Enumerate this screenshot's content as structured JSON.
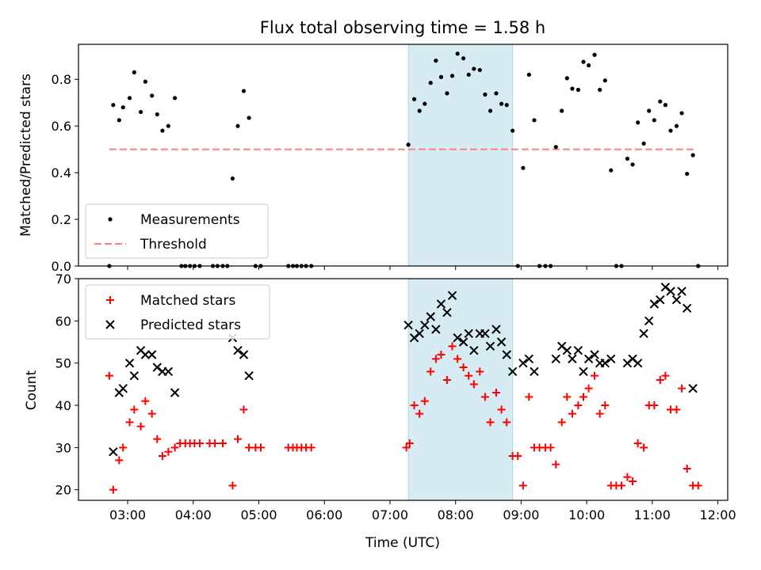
{
  "figure": {
    "title": "Flux total observing time = 1.58 h",
    "xlabel": "Time (UTC)"
  },
  "colors": {
    "measurement": "#000000",
    "threshold": "#ff7f7f",
    "matched": "#ff0000",
    "predicted": "#000000",
    "highlight": "#add8e6"
  },
  "chart_data": [
    {
      "type": "scatter",
      "panel": "top",
      "ylabel": "Matched/Predicted stars",
      "xlim": [
        2.25,
        12.15
      ],
      "ylim": [
        0,
        0.95
      ],
      "xticks": [
        3,
        4,
        5,
        6,
        7,
        8,
        9,
        10,
        11,
        12
      ],
      "xtick_labels": [],
      "yticks": [
        0.0,
        0.2,
        0.4,
        0.6,
        0.8
      ],
      "ytick_labels": [
        "0.0",
        "0.2",
        "0.4",
        "0.6",
        "0.8"
      ],
      "legend": {
        "position": "lower-left",
        "entries": [
          "Measurements",
          "Threshold"
        ]
      },
      "highlight_span": [
        7.28,
        8.87
      ],
      "threshold": {
        "name": "Threshold",
        "y": 0.5,
        "x": [
          2.72,
          11.67
        ]
      },
      "series": [
        {
          "name": "Measurements",
          "marker": "dot",
          "points": [
            [
              2.72,
              0.0
            ],
            [
              2.78,
              0.69
            ],
            [
              2.87,
              0.625
            ],
            [
              2.93,
              0.68
            ],
            [
              3.03,
              0.72
            ],
            [
              3.1,
              0.83
            ],
            [
              3.2,
              0.66
            ],
            [
              3.27,
              0.79
            ],
            [
              3.37,
              0.73
            ],
            [
              3.45,
              0.65
            ],
            [
              3.53,
              0.58
            ],
            [
              3.62,
              0.6
            ],
            [
              3.72,
              0.72
            ],
            [
              3.82,
              0.0
            ],
            [
              3.88,
              0.0
            ],
            [
              3.95,
              0.0
            ],
            [
              4.02,
              0.0
            ],
            [
              4.1,
              0.0
            ],
            [
              4.3,
              0.0
            ],
            [
              4.37,
              0.0
            ],
            [
              4.45,
              0.0
            ],
            [
              4.52,
              0.0
            ],
            [
              4.6,
              0.375
            ],
            [
              4.68,
              0.6
            ],
            [
              4.77,
              0.75
            ],
            [
              4.85,
              0.635
            ],
            [
              4.95,
              0.0
            ],
            [
              5.03,
              0.0
            ],
            [
              5.45,
              0.0
            ],
            [
              5.52,
              0.0
            ],
            [
              5.58,
              0.0
            ],
            [
              5.65,
              0.0
            ],
            [
              5.72,
              0.0
            ],
            [
              5.8,
              0.0
            ],
            [
              7.28,
              0.52
            ],
            [
              7.37,
              0.715
            ],
            [
              7.45,
              0.665
            ],
            [
              7.53,
              0.695
            ],
            [
              7.62,
              0.785
            ],
            [
              7.7,
              0.88
            ],
            [
              7.78,
              0.81
            ],
            [
              7.87,
              0.74
            ],
            [
              7.95,
              0.815
            ],
            [
              8.03,
              0.91
            ],
            [
              8.12,
              0.89
            ],
            [
              8.2,
              0.82
            ],
            [
              8.28,
              0.845
            ],
            [
              8.37,
              0.84
            ],
            [
              8.45,
              0.735
            ],
            [
              8.53,
              0.665
            ],
            [
              8.62,
              0.74
            ],
            [
              8.7,
              0.695
            ],
            [
              8.78,
              0.69
            ],
            [
              8.87,
              0.58
            ],
            [
              8.95,
              0.0
            ],
            [
              9.03,
              0.42
            ],
            [
              9.12,
              0.82
            ],
            [
              9.2,
              0.625
            ],
            [
              9.28,
              0.0
            ],
            [
              9.37,
              0.0
            ],
            [
              9.45,
              0.0
            ],
            [
              9.53,
              0.51
            ],
            [
              9.62,
              0.665
            ],
            [
              9.7,
              0.805
            ],
            [
              9.78,
              0.76
            ],
            [
              9.87,
              0.755
            ],
            [
              9.95,
              0.875
            ],
            [
              10.03,
              0.86
            ],
            [
              10.12,
              0.905
            ],
            [
              10.2,
              0.755
            ],
            [
              10.28,
              0.795
            ],
            [
              10.37,
              0.41
            ],
            [
              10.45,
              0.0
            ],
            [
              10.53,
              0.0
            ],
            [
              10.62,
              0.46
            ],
            [
              10.7,
              0.435
            ],
            [
              10.78,
              0.615
            ],
            [
              10.87,
              0.525
            ],
            [
              10.95,
              0.665
            ],
            [
              11.03,
              0.625
            ],
            [
              11.12,
              0.705
            ],
            [
              11.2,
              0.69
            ],
            [
              11.28,
              0.58
            ],
            [
              11.37,
              0.6
            ],
            [
              11.45,
              0.655
            ],
            [
              11.53,
              0.395
            ],
            [
              11.62,
              0.475
            ],
            [
              11.7,
              0.0
            ]
          ]
        }
      ]
    },
    {
      "type": "scatter",
      "panel": "bottom",
      "ylabel": "Count",
      "xlim": [
        2.25,
        12.15
      ],
      "ylim": [
        17.5,
        70
      ],
      "xticks": [
        3,
        4,
        5,
        6,
        7,
        8,
        9,
        10,
        11,
        12
      ],
      "xtick_labels": [
        "03:00",
        "04:00",
        "05:00",
        "06:00",
        "07:00",
        "08:00",
        "09:00",
        "10:00",
        "11:00",
        "12:00"
      ],
      "yticks": [
        20,
        30,
        40,
        50,
        60,
        70
      ],
      "ytick_labels": [
        "20",
        "30",
        "40",
        "50",
        "60",
        "70"
      ],
      "legend": {
        "position": "upper-left",
        "entries": [
          "Matched stars",
          "Predicted stars"
        ]
      },
      "highlight_span": [
        7.28,
        8.87
      ],
      "series": [
        {
          "name": "Matched stars",
          "marker": "plus",
          "points": [
            [
              2.72,
              47
            ],
            [
              2.78,
              20
            ],
            [
              2.87,
              27
            ],
            [
              2.93,
              30
            ],
            [
              3.03,
              36
            ],
            [
              3.1,
              39
            ],
            [
              3.2,
              35
            ],
            [
              3.27,
              41
            ],
            [
              3.37,
              38
            ],
            [
              3.45,
              32
            ],
            [
              3.53,
              28
            ],
            [
              3.62,
              29
            ],
            [
              3.72,
              30
            ],
            [
              3.8,
              31
            ],
            [
              3.88,
              31
            ],
            [
              3.95,
              31
            ],
            [
              4.02,
              31
            ],
            [
              4.1,
              31
            ],
            [
              4.25,
              31
            ],
            [
              4.33,
              31
            ],
            [
              4.45,
              31
            ],
            [
              4.6,
              21
            ],
            [
              4.68,
              32
            ],
            [
              4.77,
              39
            ],
            [
              4.85,
              30
            ],
            [
              4.95,
              30
            ],
            [
              5.03,
              30
            ],
            [
              5.45,
              30
            ],
            [
              5.52,
              30
            ],
            [
              5.58,
              30
            ],
            [
              5.65,
              30
            ],
            [
              5.72,
              30
            ],
            [
              5.8,
              30
            ],
            [
              7.25,
              30
            ],
            [
              7.3,
              31
            ],
            [
              7.37,
              40
            ],
            [
              7.45,
              38
            ],
            [
              7.53,
              41
            ],
            [
              7.62,
              48
            ],
            [
              7.7,
              51
            ],
            [
              7.78,
              52
            ],
            [
              7.87,
              46
            ],
            [
              7.95,
              54
            ],
            [
              8.03,
              51
            ],
            [
              8.12,
              49
            ],
            [
              8.2,
              47
            ],
            [
              8.28,
              45
            ],
            [
              8.37,
              48
            ],
            [
              8.45,
              42
            ],
            [
              8.53,
              36
            ],
            [
              8.62,
              43
            ],
            [
              8.7,
              39
            ],
            [
              8.78,
              36
            ],
            [
              8.87,
              28
            ],
            [
              8.95,
              28
            ],
            [
              9.03,
              21
            ],
            [
              9.12,
              42
            ],
            [
              9.2,
              30
            ],
            [
              9.28,
              30
            ],
            [
              9.37,
              30
            ],
            [
              9.45,
              30
            ],
            [
              9.53,
              26
            ],
            [
              9.62,
              36
            ],
            [
              9.7,
              42
            ],
            [
              9.78,
              38
            ],
            [
              9.87,
              40
            ],
            [
              9.95,
              42
            ],
            [
              10.03,
              44
            ],
            [
              10.12,
              47
            ],
            [
              10.2,
              38
            ],
            [
              10.28,
              40
            ],
            [
              10.37,
              21
            ],
            [
              10.45,
              21
            ],
            [
              10.53,
              21
            ],
            [
              10.62,
              23
            ],
            [
              10.7,
              22
            ],
            [
              10.78,
              31
            ],
            [
              10.87,
              30
            ],
            [
              10.95,
              40
            ],
            [
              11.03,
              40
            ],
            [
              11.12,
              46
            ],
            [
              11.2,
              47
            ],
            [
              11.28,
              39
            ],
            [
              11.37,
              39
            ],
            [
              11.45,
              44
            ],
            [
              11.53,
              25
            ],
            [
              11.62,
              21
            ],
            [
              11.7,
              21
            ]
          ]
        },
        {
          "name": "Predicted stars",
          "marker": "x",
          "points": [
            [
              2.78,
              29
            ],
            [
              2.87,
              43
            ],
            [
              2.93,
              44
            ],
            [
              3.03,
              50
            ],
            [
              3.1,
              47
            ],
            [
              3.2,
              53
            ],
            [
              3.27,
              52
            ],
            [
              3.37,
              52
            ],
            [
              3.45,
              49
            ],
            [
              3.53,
              48
            ],
            [
              3.62,
              48
            ],
            [
              3.72,
              43
            ],
            [
              4.6,
              56
            ],
            [
              4.68,
              53
            ],
            [
              4.77,
              52
            ],
            [
              4.85,
              47
            ],
            [
              7.28,
              59
            ],
            [
              7.37,
              56
            ],
            [
              7.45,
              57
            ],
            [
              7.53,
              59
            ],
            [
              7.62,
              61
            ],
            [
              7.7,
              58
            ],
            [
              7.78,
              64
            ],
            [
              7.87,
              62
            ],
            [
              7.95,
              66
            ],
            [
              8.03,
              56
            ],
            [
              8.12,
              55
            ],
            [
              8.2,
              57
            ],
            [
              8.28,
              53
            ],
            [
              8.37,
              57
            ],
            [
              8.45,
              57
            ],
            [
              8.53,
              54
            ],
            [
              8.62,
              58
            ],
            [
              8.7,
              55
            ],
            [
              8.78,
              52
            ],
            [
              8.87,
              48
            ],
            [
              9.03,
              50
            ],
            [
              9.12,
              51
            ],
            [
              9.2,
              48
            ],
            [
              9.53,
              51
            ],
            [
              9.62,
              54
            ],
            [
              9.7,
              53
            ],
            [
              9.78,
              51
            ],
            [
              9.87,
              53
            ],
            [
              9.95,
              48
            ],
            [
              10.03,
              51
            ],
            [
              10.12,
              52
            ],
            [
              10.2,
              50
            ],
            [
              10.28,
              50
            ],
            [
              10.37,
              51
            ],
            [
              10.62,
              50
            ],
            [
              10.7,
              51
            ],
            [
              10.78,
              50
            ],
            [
              10.87,
              57
            ],
            [
              10.95,
              60
            ],
            [
              11.03,
              64
            ],
            [
              11.12,
              65
            ],
            [
              11.2,
              68
            ],
            [
              11.28,
              67
            ],
            [
              11.37,
              65
            ],
            [
              11.45,
              67
            ],
            [
              11.53,
              63
            ],
            [
              11.62,
              44
            ]
          ]
        }
      ]
    }
  ]
}
